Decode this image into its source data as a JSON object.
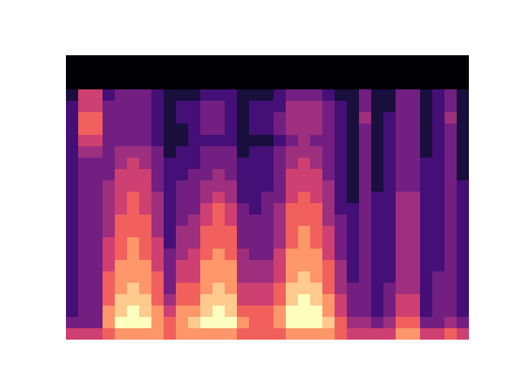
{
  "chart_data": {
    "type": "heatmap",
    "color": "magma",
    "tick_labels": false,
    "clim": [
      0,
      9
    ],
    "cells": [
      [
        0,
        0,
        0,
        0,
        0,
        0,
        0,
        0,
        0,
        0,
        0,
        0,
        0,
        0,
        0,
        0,
        0,
        0,
        0,
        0,
        0,
        0,
        0,
        0,
        0,
        0,
        0,
        0,
        0,
        0,
        0,
        0,
        0
      ],
      [
        0,
        0,
        0,
        0,
        0,
        0,
        0,
        0,
        0,
        0,
        0,
        0,
        0,
        0,
        0,
        0,
        0,
        0,
        0,
        0,
        0,
        0,
        0,
        0,
        0,
        0,
        0,
        0,
        0,
        0,
        0,
        0,
        0
      ],
      [
        0,
        0,
        0,
        0,
        0,
        0,
        0,
        0,
        0,
        0,
        0,
        0,
        0,
        0,
        0,
        0,
        0,
        0,
        0,
        0,
        0,
        0,
        0,
        0,
        0,
        0,
        0,
        0,
        0,
        0,
        0,
        0,
        0
      ],
      [
        1,
        5,
        5,
        2,
        3,
        3,
        3,
        2,
        1,
        1,
        1,
        2,
        2,
        2,
        1,
        1,
        1,
        2,
        3,
        3,
        3,
        2,
        1,
        1,
        3,
        1,
        1,
        3,
        3,
        1,
        2,
        3,
        1
      ],
      [
        2,
        5,
        5,
        3,
        3,
        3,
        3,
        2,
        1,
        2,
        2,
        3,
        3,
        2,
        1,
        2,
        2,
        2,
        4,
        4,
        4,
        3,
        2,
        1,
        3,
        1,
        1,
        3,
        3,
        1,
        2,
        3,
        1
      ],
      [
        2,
        6,
        6,
        3,
        3,
        3,
        3,
        2,
        1,
        2,
        2,
        3,
        3,
        2,
        1,
        2,
        2,
        3,
        4,
        4,
        4,
        3,
        2,
        1,
        4,
        1,
        2,
        3,
        3,
        1,
        2,
        4,
        1
      ],
      [
        2,
        6,
        6,
        3,
        3,
        3,
        3,
        2,
        1,
        1,
        2,
        3,
        3,
        2,
        1,
        2,
        2,
        3,
        4,
        4,
        4,
        3,
        2,
        1,
        3,
        1,
        2,
        3,
        3,
        1,
        2,
        3,
        1
      ],
      [
        2,
        5,
        5,
        3,
        3,
        3,
        3,
        2,
        1,
        1,
        2,
        2,
        2,
        2,
        1,
        1,
        1,
        2,
        3,
        4,
        3,
        3,
        2,
        1,
        3,
        1,
        2,
        3,
        3,
        1,
        2,
        3,
        1
      ],
      [
        2,
        4,
        4,
        3,
        4,
        4,
        4,
        3,
        1,
        2,
        2,
        3,
        3,
        3,
        1,
        2,
        2,
        3,
        4,
        4,
        4,
        3,
        2,
        1,
        3,
        1,
        2,
        3,
        3,
        1,
        2,
        3,
        1
      ],
      [
        2,
        3,
        3,
        3,
        4,
        5,
        4,
        3,
        2,
        2,
        2,
        3,
        3,
        3,
        2,
        2,
        2,
        3,
        4,
        5,
        4,
        3,
        2,
        1,
        3,
        1,
        2,
        3,
        3,
        2,
        2,
        3,
        1
      ],
      [
        2,
        3,
        3,
        3,
        5,
        5,
        5,
        3,
        2,
        2,
        3,
        3,
        4,
        3,
        2,
        2,
        2,
        3,
        5,
        5,
        5,
        3,
        2,
        1,
        3,
        1,
        2,
        3,
        3,
        2,
        2,
        3,
        1
      ],
      [
        2,
        3,
        3,
        4,
        5,
        5,
        5,
        3,
        2,
        3,
        3,
        4,
        4,
        4,
        2,
        2,
        2,
        3,
        5,
        5,
        5,
        4,
        2,
        1,
        3,
        1,
        2,
        3,
        3,
        2,
        2,
        3,
        2
      ],
      [
        2,
        3,
        3,
        4,
        5,
        6,
        5,
        4,
        2,
        3,
        3,
        4,
        5,
        4,
        2,
        2,
        3,
        3,
        5,
        6,
        5,
        4,
        2,
        1,
        3,
        2,
        2,
        4,
        4,
        2,
        2,
        3,
        2
      ],
      [
        2,
        3,
        3,
        4,
        5,
        6,
        5,
        4,
        2,
        3,
        3,
        5,
        6,
        5,
        3,
        2,
        3,
        4,
        6,
        6,
        6,
        4,
        2,
        2,
        3,
        2,
        2,
        4,
        4,
        2,
        2,
        3,
        2
      ],
      [
        2,
        3,
        3,
        4,
        6,
        6,
        6,
        4,
        2,
        3,
        4,
        5,
        6,
        5,
        3,
        3,
        3,
        4,
        6,
        6,
        6,
        4,
        3,
        2,
        3,
        2,
        2,
        4,
        4,
        2,
        2,
        3,
        2
      ],
      [
        2,
        3,
        3,
        4,
        6,
        6,
        6,
        4,
        2,
        4,
        4,
        6,
        6,
        6,
        3,
        3,
        3,
        4,
        6,
        7,
        6,
        5,
        3,
        2,
        3,
        2,
        2,
        4,
        4,
        2,
        2,
        3,
        2
      ],
      [
        2,
        3,
        3,
        5,
        6,
        7,
        6,
        5,
        2,
        4,
        4,
        6,
        6,
        6,
        3,
        3,
        3,
        4,
        6,
        7,
        6,
        5,
        3,
        2,
        3,
        2,
        2,
        4,
        4,
        2,
        2,
        3,
        2
      ],
      [
        2,
        3,
        3,
        5,
        6,
        7,
        6,
        5,
        3,
        4,
        5,
        6,
        7,
        6,
        4,
        3,
        3,
        5,
        7,
        7,
        7,
        5,
        3,
        2,
        3,
        2,
        2,
        4,
        4,
        2,
        2,
        3,
        2
      ],
      [
        2,
        3,
        3,
        5,
        7,
        7,
        7,
        5,
        3,
        5,
        5,
        7,
        7,
        7,
        4,
        4,
        4,
        5,
        7,
        7,
        7,
        6,
        4,
        2,
        3,
        2,
        2,
        4,
        4,
        2,
        2,
        3,
        2
      ],
      [
        2,
        3,
        3,
        6,
        7,
        7,
        7,
        6,
        3,
        5,
        5,
        7,
        7,
        7,
        4,
        4,
        4,
        5,
        7,
        8,
        7,
        6,
        4,
        2,
        3,
        2,
        2,
        4,
        4,
        2,
        3,
        3,
        2
      ],
      [
        2,
        3,
        3,
        6,
        7,
        8,
        7,
        6,
        3,
        6,
        6,
        7,
        8,
        7,
        5,
        5,
        5,
        6,
        8,
        8,
        8,
        6,
        4,
        3,
        3,
        2,
        3,
        4,
        4,
        2,
        3,
        3,
        2
      ],
      [
        2,
        3,
        3,
        6,
        8,
        8,
        8,
        6,
        4,
        6,
        6,
        8,
        8,
        8,
        5,
        5,
        5,
        6,
        8,
        9,
        8,
        7,
        5,
        3,
        3,
        2,
        3,
        5,
        5,
        2,
        3,
        3,
        2
      ],
      [
        2,
        3,
        3,
        7,
        8,
        9,
        8,
        7,
        5,
        7,
        7,
        8,
        9,
        8,
        6,
        6,
        6,
        7,
        9,
        9,
        9,
        7,
        5,
        3,
        3,
        2,
        3,
        5,
        5,
        2,
        3,
        3,
        2
      ],
      [
        3,
        3,
        3,
        7,
        9,
        9,
        9,
        7,
        6,
        7,
        8,
        9,
        9,
        9,
        7,
        6,
        6,
        7,
        9,
        9,
        9,
        8,
        6,
        4,
        4,
        3,
        4,
        6,
        6,
        3,
        3,
        4,
        3
      ],
      [
        5,
        5,
        5,
        6,
        7,
        7,
        7,
        7,
        6,
        7,
        7,
        7,
        7,
        7,
        6,
        6,
        6,
        6,
        7,
        7,
        7,
        7,
        6,
        5,
        5,
        5,
        5,
        7,
        7,
        5,
        5,
        6,
        5
      ]
    ]
  }
}
